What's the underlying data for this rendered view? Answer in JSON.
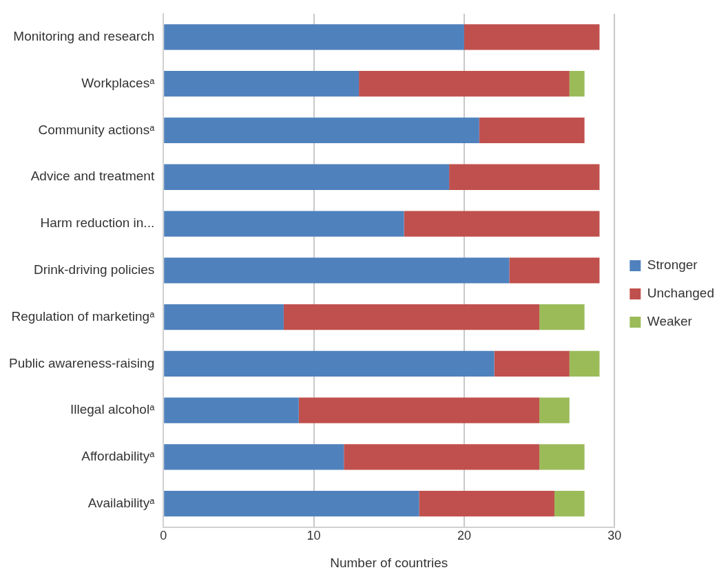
{
  "chart_data": {
    "type": "bar",
    "orientation": "horizontal",
    "stacked": true,
    "xlabel": "Number of countries",
    "categories": [
      "Monitoring and research",
      "Workplacesᵃ",
      "Community actionsᵃ",
      "Advice and treatment",
      "Harm reduction in...",
      "Drink-driving policies",
      "Regulation of marketingᵃ",
      "Public awareness-raising",
      "Illegal alcoholᵃ",
      "Affordabilityᵃ",
      "Availabilityᵃ"
    ],
    "series": [
      {
        "name": "Stronger",
        "color": "#4f81bd",
        "values": [
          20,
          13,
          21,
          19,
          16,
          23,
          8,
          22,
          9,
          12,
          17
        ]
      },
      {
        "name": "Unchanged",
        "color": "#c0504d",
        "values": [
          9,
          14,
          7,
          10,
          13,
          6,
          17,
          5,
          16,
          13,
          9
        ]
      },
      {
        "name": "Weaker",
        "color": "#9bbb59",
        "values": [
          0,
          1,
          0,
          0,
          0,
          0,
          3,
          2,
          2,
          3,
          2
        ]
      }
    ],
    "xlim": [
      0,
      30
    ],
    "xticks": [
      0,
      10,
      20,
      30
    ],
    "grid": "x",
    "legend": "right"
  }
}
